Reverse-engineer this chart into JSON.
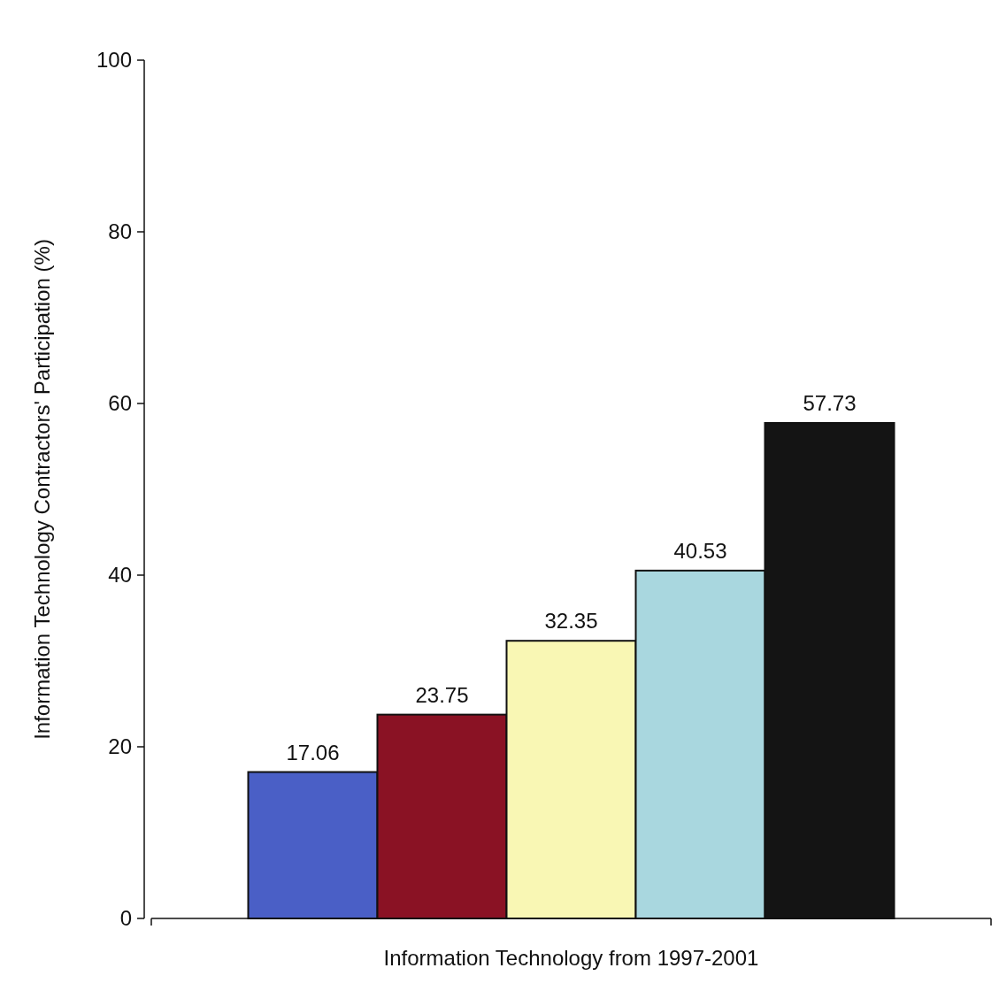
{
  "chart_data": {
    "type": "bar",
    "xlabel": "Information Technology from 1997-2001",
    "ylabel": "Information Technology Contractors' Participation (%)",
    "categories": [
      null,
      null,
      null,
      null,
      null
    ],
    "values": [
      17.06,
      23.75,
      32.35,
      40.53,
      57.73
    ],
    "colors": [
      "#4a5fc6",
      "#8a1224",
      "#f9f7b4",
      "#a9d7df",
      "#141414"
    ],
    "ylim": [
      0,
      100
    ],
    "yticks": [
      0,
      20,
      40,
      60,
      80,
      100
    ],
    "data_labels": true
  }
}
